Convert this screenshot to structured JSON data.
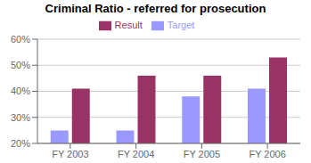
{
  "chart_data": {
    "type": "bar",
    "title": "Criminal Ratio - referred for prosecution",
    "categories": [
      "FY 2003",
      "FY 2004",
      "FY 2005",
      "FY 2006"
    ],
    "series": [
      {
        "name": "Target",
        "color": "#9999ff",
        "values": [
          0.25,
          0.25,
          0.38,
          0.41
        ]
      },
      {
        "name": "Result",
        "color": "#993366",
        "values": [
          0.41,
          0.46,
          0.46,
          0.53
        ]
      }
    ],
    "ylim": [
      0.2,
      0.6
    ],
    "yticks": [
      {
        "value": 0.2,
        "label": "20%"
      },
      {
        "value": 0.3,
        "label": "30%"
      },
      {
        "value": 0.4,
        "label": "40%"
      },
      {
        "value": 0.5,
        "label": "50%"
      },
      {
        "value": 0.6,
        "label": "60%"
      }
    ],
    "grid": true,
    "legend": "top"
  }
}
